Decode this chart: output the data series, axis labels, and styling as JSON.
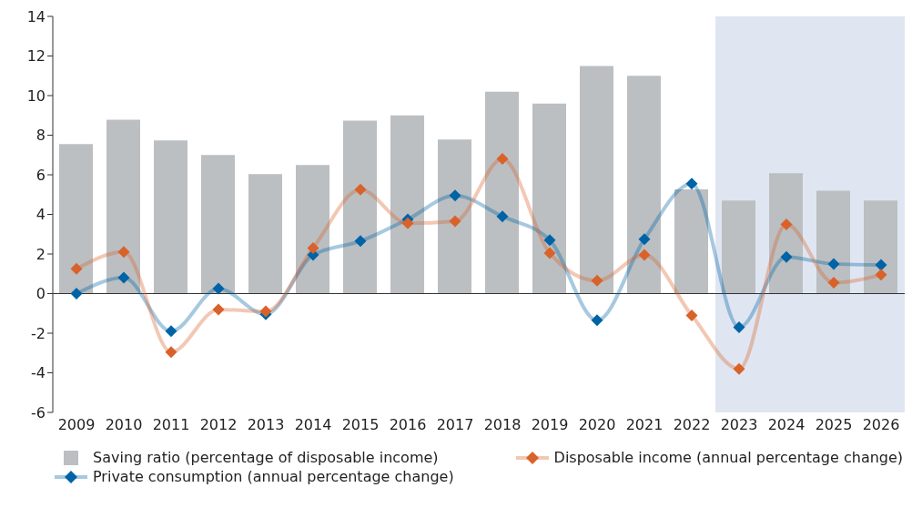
{
  "chart_data": {
    "type": "bar",
    "categories": [
      "2009",
      "2010",
      "2011",
      "2012",
      "2013",
      "2014",
      "2015",
      "2016",
      "2017",
      "2018",
      "2019",
      "2020",
      "2021",
      "2022",
      "2023",
      "2024",
      "2025",
      "2026"
    ],
    "series": [
      {
        "name": "Saving ratio (percentage of disposable income)",
        "color": "#bbbfc2",
        "values": [
          7.55,
          8.78,
          7.73,
          7.0,
          6.04,
          6.5,
          8.74,
          9.0,
          7.78,
          10.2,
          9.6,
          11.5,
          11.0,
          5.26,
          4.7,
          6.08,
          5.2,
          4.7
        ]
      },
      {
        "name": "Private consumption (annual percentage change)",
        "type": "line",
        "color": "#0063a6",
        "marker": "diamond",
        "values": [
          0,
          0.8,
          -1.9,
          0.25,
          -1.05,
          1.95,
          2.65,
          3.75,
          4.95,
          3.9,
          2.7,
          -1.35,
          2.75,
          5.55,
          -1.7,
          1.85,
          1.5,
          1.45
        ]
      },
      {
        "name": "Disposable income (annual percentage change)",
        "type": "line",
        "color": "#d9622b",
        "marker": "diamond",
        "values": [
          1.25,
          2.1,
          -2.95,
          -0.8,
          -0.9,
          2.3,
          5.25,
          3.55,
          3.65,
          6.8,
          2.05,
          0.65,
          1.95,
          -1.1,
          -3.8,
          3.5,
          0.55,
          0.95
        ]
      }
    ],
    "ylim": [
      -6,
      14
    ],
    "yticks": [
      -6,
      -4,
      -2,
      0,
      2,
      4,
      6,
      8,
      10,
      12,
      14
    ],
    "bands": [
      {
        "axis": "x",
        "from": "2023",
        "to": "2026",
        "color": "#dfe6f1"
      }
    ],
    "legend": "bottom"
  }
}
